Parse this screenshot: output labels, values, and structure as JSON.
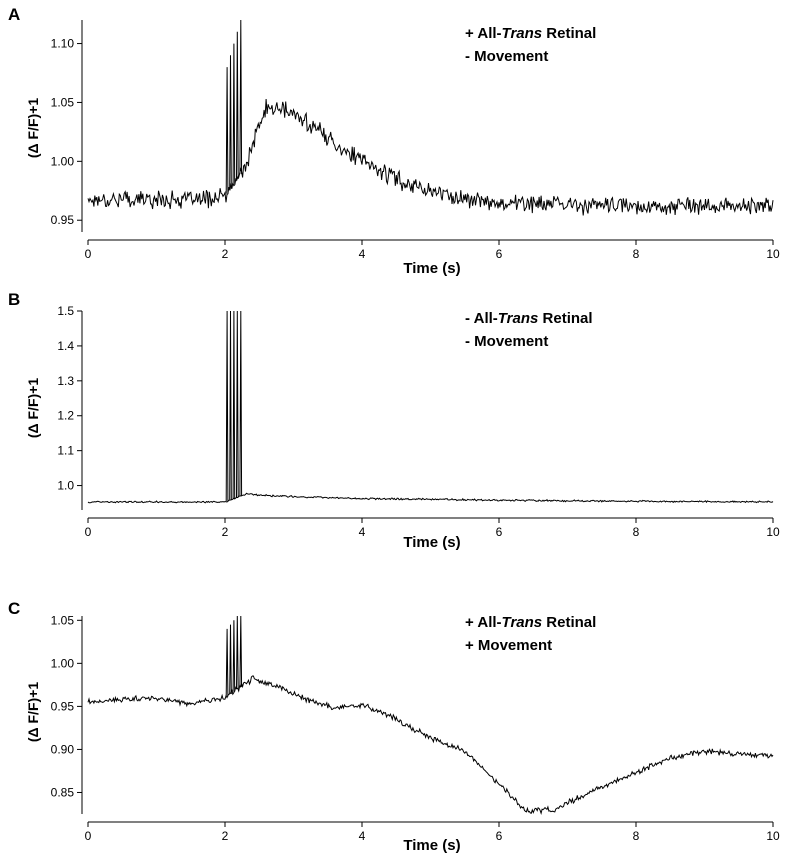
{
  "chart_data": [
    {
      "type": "line",
      "panel": "A",
      "title": "",
      "legend": [
        "+ All-Trans Retinal",
        "- Movement"
      ],
      "xlabel": "Time (s)",
      "ylabel": "(Δ F/F)+1",
      "xlim": [
        0,
        10
      ],
      "ylim": [
        0.94,
        1.12
      ],
      "xticks": [
        0,
        2,
        4,
        6,
        8,
        10
      ],
      "yticks": [
        0.95,
        1.0,
        1.05,
        1.1
      ],
      "ytick_labels": [
        "0.95",
        "1.00",
        "1.05",
        "1.10"
      ],
      "stim_spikes": {
        "times": [
          2.03,
          2.08,
          2.13,
          2.18,
          2.23
        ],
        "peaks": [
          1.08,
          1.09,
          1.1,
          1.11,
          1.12
        ]
      },
      "series": [
        {
          "name": "trace",
          "x": [
            0,
            0.5,
            1.0,
            1.5,
            2.0,
            2.3,
            2.5,
            2.6,
            2.8,
            3.0,
            3.3,
            3.6,
            4.0,
            4.5,
            5.0,
            5.5,
            6.0,
            7.0,
            8.0,
            9.0,
            10.0
          ],
          "y": [
            0.968,
            0.968,
            0.968,
            0.967,
            0.97,
            0.995,
            1.03,
            1.045,
            1.045,
            1.04,
            1.03,
            1.015,
            1.0,
            0.985,
            0.975,
            0.968,
            0.965,
            0.963,
            0.962,
            0.962,
            0.962
          ],
          "noise": 0.009
        }
      ]
    },
    {
      "type": "line",
      "panel": "B",
      "title": "",
      "legend": [
        "- All-Trans Retinal",
        "- Movement"
      ],
      "xlabel": "Time (s)",
      "ylabel": "(Δ F/F)+1",
      "xlim": [
        0,
        10
      ],
      "ylim": [
        0.93,
        1.5
      ],
      "xticks": [
        0,
        2,
        4,
        6,
        8,
        10
      ],
      "yticks": [
        1.0,
        1.1,
        1.2,
        1.3,
        1.4,
        1.5
      ],
      "ytick_labels": [
        "1.0",
        "1.1",
        "1.2",
        "1.3",
        "1.4",
        "1.5"
      ],
      "stim_spikes": {
        "times": [
          2.03,
          2.08,
          2.13,
          2.18,
          2.23
        ],
        "peaks": [
          1.5,
          1.5,
          1.5,
          1.5,
          1.5
        ]
      },
      "series": [
        {
          "name": "trace",
          "x": [
            0,
            1.0,
            2.0,
            2.3,
            2.6,
            3.0,
            4.0,
            6.0,
            8.0,
            10.0
          ],
          "y": [
            0.953,
            0.953,
            0.953,
            0.975,
            0.972,
            0.968,
            0.963,
            0.958,
            0.955,
            0.953
          ],
          "noise": 0.003
        }
      ]
    },
    {
      "type": "line",
      "panel": "C",
      "title": "",
      "legend": [
        "+ All-Trans Retinal",
        "+ Movement"
      ],
      "xlabel": "Time (s)",
      "ylabel": "(Δ F/F)+1",
      "xlim": [
        0,
        10
      ],
      "ylim": [
        0.825,
        1.055
      ],
      "xticks": [
        0,
        2,
        4,
        6,
        8,
        10
      ],
      "yticks": [
        0.85,
        0.9,
        0.95,
        1.0,
        1.05
      ],
      "ytick_labels": [
        "0.85",
        "0.90",
        "0.95",
        "1.00",
        "1.05"
      ],
      "stim_spikes": {
        "times": [
          2.03,
          2.08,
          2.13,
          2.18,
          2.23
        ],
        "peaks": [
          1.04,
          1.045,
          1.05,
          1.055,
          1.055
        ]
      },
      "series": [
        {
          "name": "trace",
          "x": [
            0,
            0.5,
            1.0,
            1.5,
            2.0,
            2.4,
            2.8,
            3.2,
            3.6,
            4.0,
            4.4,
            5.0,
            5.5,
            6.0,
            6.4,
            6.8,
            7.2,
            7.6,
            8.0,
            8.5,
            9.0,
            9.5,
            10.0
          ],
          "y": [
            0.955,
            0.958,
            0.96,
            0.953,
            0.96,
            0.982,
            0.972,
            0.958,
            0.948,
            0.952,
            0.94,
            0.913,
            0.898,
            0.86,
            0.828,
            0.83,
            0.845,
            0.86,
            0.873,
            0.89,
            0.898,
            0.895,
            0.893
          ],
          "noise": 0.004
        }
      ]
    }
  ]
}
